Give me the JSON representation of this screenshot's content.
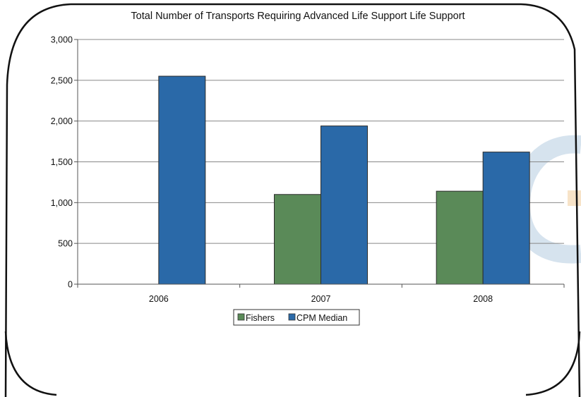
{
  "colors": {
    "fishers": "#5a8a58",
    "cpm_median": "#2a69a8",
    "frame": "#111111",
    "grid": "#888888",
    "watermark": "#d6e3ee"
  },
  "chart_data": {
    "type": "bar",
    "title": "Total Number of Transports Requiring Advanced Life Support Life Support",
    "xlabel": "",
    "ylabel": "",
    "categories": [
      "2006",
      "2007",
      "2008"
    ],
    "series": [
      {
        "name": "Fishers",
        "values": [
          0,
          1100,
          1140
        ],
        "color": "#5a8a58"
      },
      {
        "name": "CPM Median",
        "values": [
          2550,
          1940,
          1620
        ],
        "color": "#2a69a8"
      }
    ],
    "ylim": [
      0,
      3000
    ],
    "yticks": [
      0,
      500,
      1000,
      1500,
      2000,
      2500,
      3000
    ],
    "ytick_labels": [
      "0",
      "500",
      "1,000",
      "1,500",
      "2,000",
      "2,500",
      "3,000"
    ],
    "grid": true,
    "legend": "bottom-center"
  }
}
